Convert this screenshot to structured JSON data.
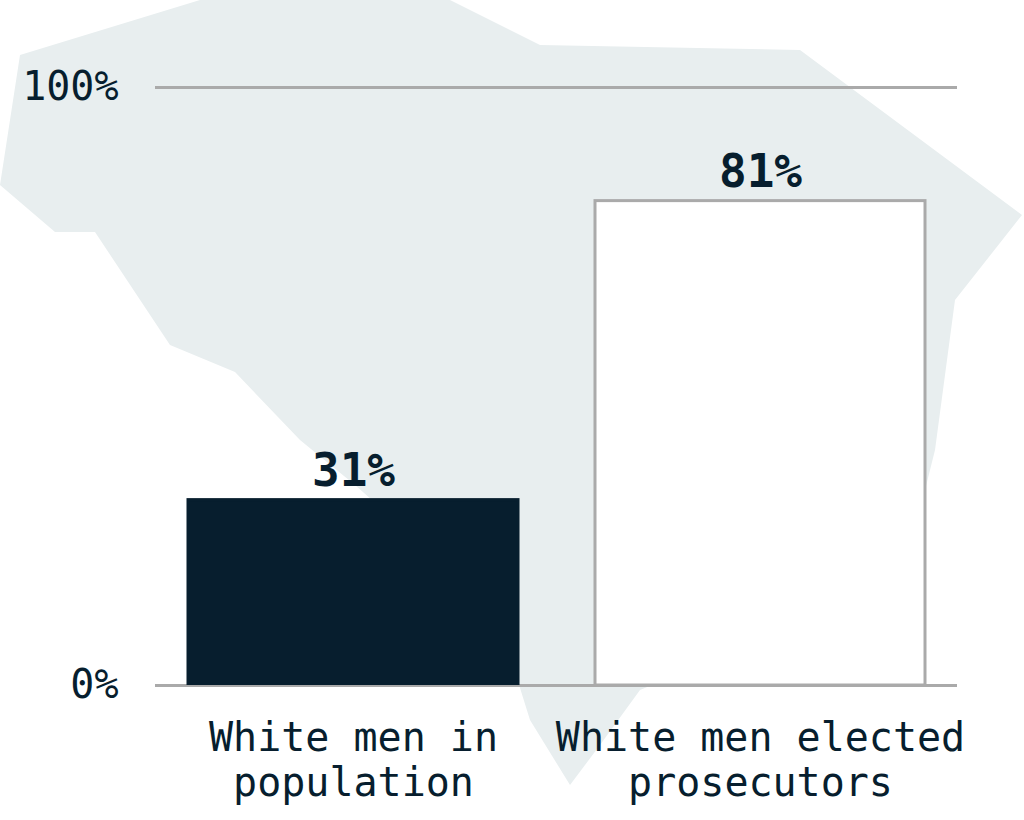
{
  "chart_data": {
    "type": "bar",
    "categories": [
      "White men in population",
      "White men elected prosecutors"
    ],
    "values": [
      31,
      81
    ],
    "value_labels": [
      "31%",
      "81%"
    ],
    "colors": [
      "#071e2e",
      "#ffffff"
    ],
    "ylim": [
      0,
      100
    ],
    "yticks": [
      {
        "value": 0,
        "label": "0%"
      },
      {
        "value": 100,
        "label": "100%"
      }
    ],
    "grid": true,
    "data_labels": true
  }
}
